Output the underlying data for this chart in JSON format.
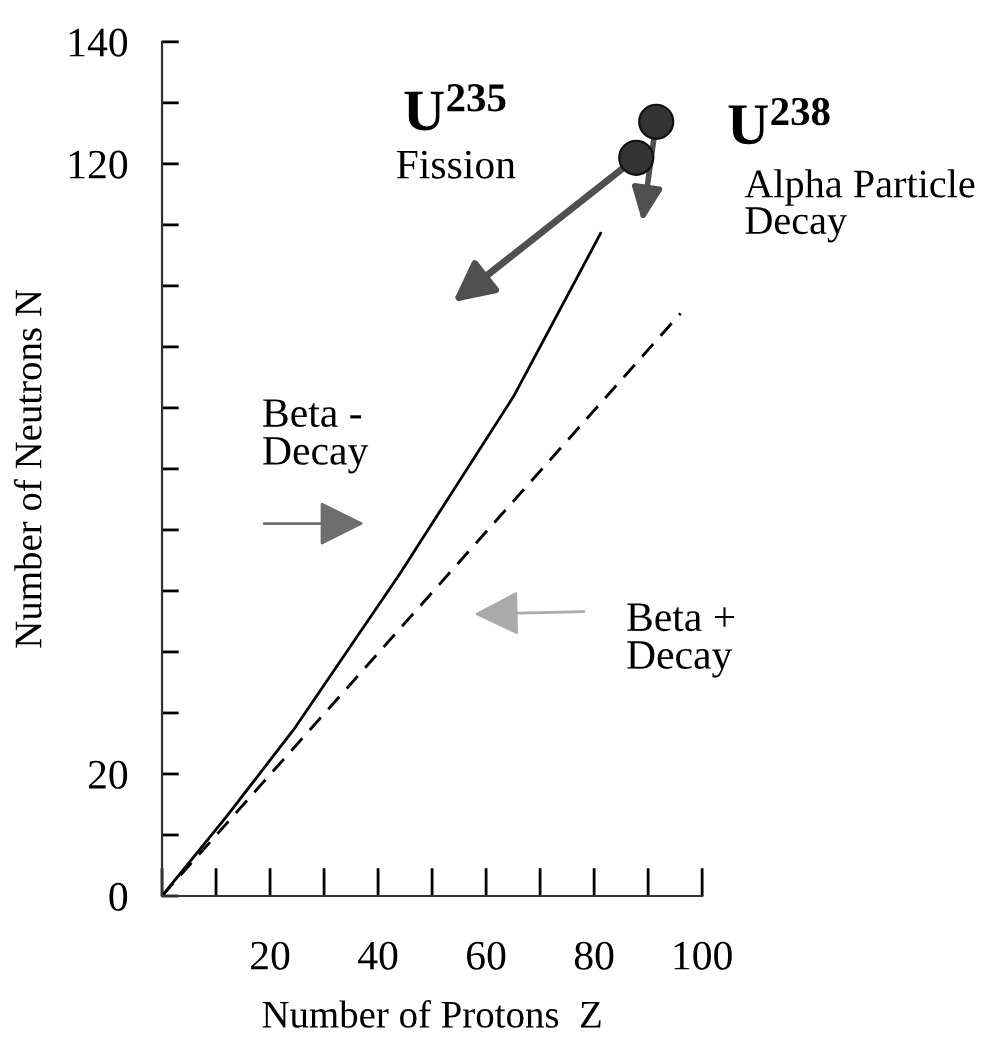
{
  "chart_data": {
    "type": "line",
    "xlabel": "Number of Protons  Z",
    "ylabel": "Number of Neutrons N",
    "xlim": [
      0,
      100
    ],
    "ylim": [
      0,
      140
    ],
    "xticks": [
      {
        "value": 0,
        "label": null
      },
      {
        "value": 10,
        "label": null
      },
      20,
      {
        "value": 30,
        "label": null
      },
      40,
      {
        "value": 50,
        "label": null
      },
      60,
      {
        "value": 70,
        "label": null
      },
      80,
      {
        "value": 90,
        "label": null
      },
      100
    ],
    "yticks": [
      0,
      {
        "value": 10,
        "label": null
      },
      20,
      {
        "value": 30,
        "label": null
      },
      {
        "value": 40,
        "label": null
      },
      {
        "value": 50,
        "label": null
      },
      {
        "value": 60,
        "label": null
      },
      {
        "value": 70,
        "label": null
      },
      {
        "value": 80,
        "label": null
      },
      {
        "value": 90,
        "label": null
      },
      {
        "value": 100,
        "label": null
      },
      {
        "value": 110,
        "label": null
      },
      120,
      {
        "value": 130,
        "label": null
      },
      140
    ],
    "grid": false,
    "legend": false,
    "series": [
      {
        "color": "#000000",
        "line_style": "solid",
        "x": [
          0,
          12,
          24.4,
          44.1,
          65.1,
          81.2
        ],
        "values": [
          0,
          13.1,
          27.3,
          52.9,
          81.9,
          108.6
        ]
      },
      {
        "color": "#000000",
        "line_style": "dashed",
        "x": [
          0,
          96
        ],
        "values": [
          0,
          95.5
        ]
      },
      {
        "type": "scatter",
        "color": "#333333",
        "marker": "circle",
        "x": [
          87.8,
          91.5
        ],
        "values": [
          121,
          126.9
        ]
      }
    ],
    "annotations": [
      "U$^{235}$",
      "Fission",
      "U$^{238}$",
      "Alpha Particle\nDecay",
      "Beta -\nDecay",
      "Beta +\nDecay"
    ]
  }
}
